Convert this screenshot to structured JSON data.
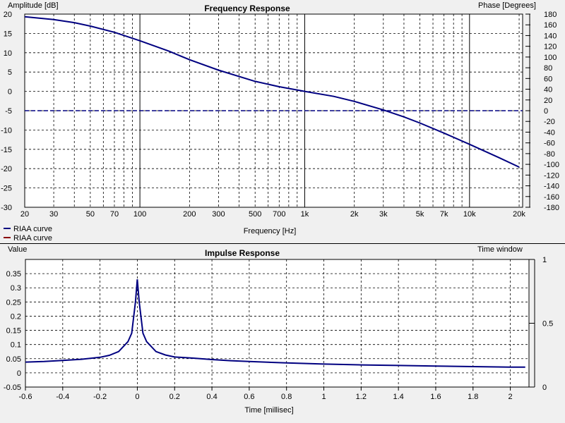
{
  "chart_data": [
    {
      "type": "line",
      "title": "Frequency Response",
      "xlabel": "Frequency [Hz]",
      "ylabel": "Amplitude [dB]",
      "y2label": "Phase [Degrees]",
      "x_scale": "log",
      "xlim": [
        20,
        21000
      ],
      "ylim": [
        -30,
        20
      ],
      "y2lim": [
        -180,
        180
      ],
      "grid": true,
      "legend_position": "bottom-left",
      "x_ticks": [
        {
          "value": 20,
          "label": "20"
        },
        {
          "value": 30,
          "label": "30"
        },
        {
          "value": 50,
          "label": "50"
        },
        {
          "value": 70,
          "label": "70"
        },
        {
          "value": 100,
          "label": "100"
        },
        {
          "value": 200,
          "label": "200"
        },
        {
          "value": 300,
          "label": "300"
        },
        {
          "value": 500,
          "label": "500"
        },
        {
          "value": 700,
          "label": "700"
        },
        {
          "value": 1000,
          "label": "1k"
        },
        {
          "value": 2000,
          "label": "2k"
        },
        {
          "value": 3000,
          "label": "3k"
        },
        {
          "value": 5000,
          "label": "5k"
        },
        {
          "value": 7000,
          "label": "7k"
        },
        {
          "value": 10000,
          "label": "10k"
        },
        {
          "value": 20000,
          "label": "20k"
        }
      ],
      "y_ticks": [
        20,
        15,
        10,
        5,
        0,
        -5,
        -10,
        -15,
        -20,
        -25,
        -30
      ],
      "y2_ticks": [
        180,
        160,
        140,
        120,
        100,
        80,
        60,
        40,
        20,
        0,
        -20,
        -40,
        -60,
        -80,
        -100,
        -120,
        -140,
        -160,
        -180
      ],
      "series": [
        {
          "name": "RIAA curve",
          "axis": "left",
          "color": "#000080",
          "style": "solid",
          "x": [
            20,
            30,
            40,
            50,
            70,
            100,
            150,
            200,
            300,
            500,
            700,
            1000,
            1500,
            2000,
            3000,
            4000,
            5000,
            7000,
            10000,
            15000,
            20000
          ],
          "y": [
            19.3,
            18.6,
            17.8,
            16.9,
            15.3,
            13.1,
            10.4,
            8.2,
            5.5,
            2.6,
            1.2,
            0.0,
            -1.3,
            -2.6,
            -4.8,
            -6.6,
            -8.2,
            -10.8,
            -13.7,
            -17.1,
            -19.6
          ]
        },
        {
          "name": "RIAA curve",
          "axis": "right",
          "color": "#8B0000",
          "style": "dashed",
          "x": [
            20,
            21000
          ],
          "y": [
            0,
            0
          ]
        }
      ]
    },
    {
      "type": "line",
      "title": "Impulse Response",
      "xlabel": "Time [millisec]",
      "ylabel": "Value",
      "y2label": "Time window",
      "xlim": [
        -0.6,
        2.1
      ],
      "ylim": [
        -0.05,
        0.4
      ],
      "y2lim": [
        0,
        1
      ],
      "grid": true,
      "x_ticks": [
        -0.6,
        -0.4,
        -0.2,
        0,
        0.2,
        0.4,
        0.6,
        0.8,
        1,
        1.2,
        1.4,
        1.6,
        1.8,
        2
      ],
      "y_ticks": [
        0.35,
        0.3,
        0.25,
        0.2,
        0.15,
        0.1,
        0.05,
        0,
        -0.05
      ],
      "y2_ticks": [
        1,
        0.5,
        0
      ],
      "series": [
        {
          "name": "Impulse response",
          "color": "#000080",
          "x": [
            -0.6,
            -0.5,
            -0.4,
            -0.3,
            -0.2,
            -0.15,
            -0.1,
            -0.05,
            -0.03,
            -0.01,
            0.0,
            0.01,
            0.03,
            0.05,
            0.1,
            0.15,
            0.2,
            0.3,
            0.4,
            0.5,
            0.6,
            0.8,
            1.0,
            1.2,
            1.4,
            1.6,
            1.8,
            2.0,
            2.08
          ],
          "y": [
            0.038,
            0.04,
            0.044,
            0.048,
            0.055,
            0.062,
            0.075,
            0.11,
            0.14,
            0.25,
            0.33,
            0.25,
            0.14,
            0.11,
            0.075,
            0.063,
            0.056,
            0.052,
            0.047,
            0.043,
            0.04,
            0.035,
            0.031,
            0.028,
            0.026,
            0.024,
            0.022,
            0.02,
            0.02
          ]
        }
      ]
    }
  ]
}
